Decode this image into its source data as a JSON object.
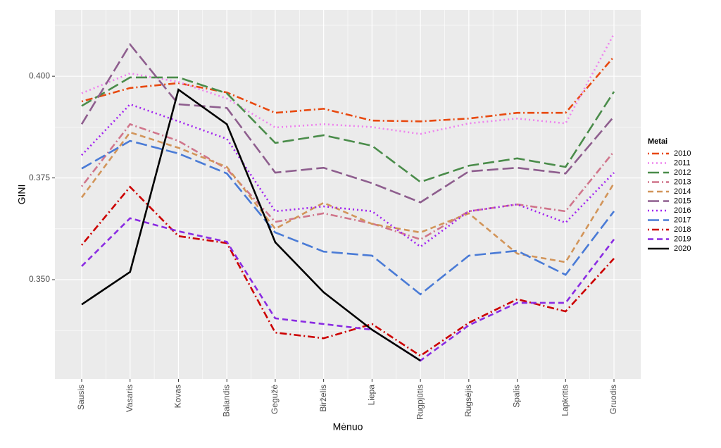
{
  "chart_data": {
    "type": "line",
    "x_label": "Mėnuo",
    "y_label": "GINI",
    "legend_title": "Metai",
    "legend": "right",
    "grid": true,
    "categories": [
      "Sausis",
      "Vasaris",
      "Kovas",
      "Balandis",
      "Gegužė",
      "Birželis",
      "Liepa",
      "Rugpjūtis",
      "Rugsėjis",
      "Spalis",
      "Lapkritis",
      "Gruodis"
    ],
    "ylim": [
      0.3256,
      0.4163
    ],
    "yticks": [
      {
        "value": 0.35,
        "label": "0.350"
      },
      0.375,
      {
        "value": 0.4,
        "label": "0.400"
      }
    ],
    "series": [
      {
        "name": "2010",
        "color": "#e8490f",
        "linetype": "dotdash",
        "values": [
          0.3938,
          0.3971,
          0.3983,
          0.396,
          0.391,
          0.392,
          0.3891,
          0.3889,
          0.3896,
          0.391,
          0.391,
          0.4048
        ]
      },
      {
        "name": "2011",
        "color": "#ee82ee",
        "linetype": "dotted",
        "values": [
          0.3958,
          0.4007,
          0.3986,
          0.3945,
          0.3874,
          0.3882,
          0.3875,
          0.3858,
          0.3884,
          0.3896,
          0.3884,
          0.4104
        ]
      },
      {
        "name": "2012",
        "color": "#4a8c4a",
        "linetype": "longdash",
        "values": [
          0.3927,
          0.3997,
          0.3997,
          0.3958,
          0.3836,
          0.3855,
          0.3829,
          0.374,
          0.378,
          0.3798,
          0.3777,
          0.3962
        ]
      },
      {
        "name": "2013",
        "color": "#d0758b",
        "linetype": "dotdash",
        "values": [
          0.3729,
          0.3882,
          0.3841,
          0.3772,
          0.3642,
          0.3663,
          0.3638,
          0.3599,
          0.3668,
          0.3685,
          0.3668,
          0.3815
        ]
      },
      {
        "name": "2014",
        "color": "#d2955a",
        "linetype": "dashed",
        "values": [
          0.3702,
          0.3862,
          0.3824,
          0.3777,
          0.3625,
          0.3689,
          0.3637,
          0.3616,
          0.3663,
          0.3564,
          0.3543,
          0.3737
        ]
      },
      {
        "name": "2015",
        "color": "#8e5e8e",
        "linetype": "longdash",
        "values": [
          0.3882,
          0.4078,
          0.3931,
          0.3922,
          0.3763,
          0.3775,
          0.3737,
          0.369,
          0.3766,
          0.3775,
          0.3761,
          0.3901
        ]
      },
      {
        "name": "2016",
        "color": "#a020f0",
        "linetype": "dotted",
        "values": [
          0.3806,
          0.3931,
          0.3889,
          0.3846,
          0.3668,
          0.368,
          0.3668,
          0.3581,
          0.3668,
          0.3685,
          0.364,
          0.3763
        ]
      },
      {
        "name": "2017",
        "color": "#4a7bd6",
        "linetype": "longdash",
        "values": [
          0.3773,
          0.3841,
          0.381,
          0.3761,
          0.3616,
          0.3569,
          0.3559,
          0.3464,
          0.3559,
          0.3571,
          0.3512,
          0.3668
        ]
      },
      {
        "name": "2018",
        "color": "#cc0000",
        "linetype": "dotdash",
        "values": [
          0.3585,
          0.3728,
          0.3607,
          0.359,
          0.337,
          0.3356,
          0.3391,
          0.3313,
          0.3394,
          0.3452,
          0.3422,
          0.3552
        ]
      },
      {
        "name": "2019",
        "color": "#8a2be2",
        "linetype": "dashed",
        "values": [
          0.3533,
          0.3651,
          0.3619,
          0.3593,
          0.3405,
          0.3391,
          0.3377,
          0.3301,
          0.3388,
          0.3443,
          0.3443,
          0.3599
        ]
      },
      {
        "name": "2020",
        "color": "#000000",
        "linetype": "solid",
        "values": [
          0.3439,
          0.3519,
          0.3967,
          0.3882,
          0.3592,
          0.3469,
          0.3377,
          0.3301,
          null,
          null,
          null,
          null
        ]
      }
    ]
  }
}
